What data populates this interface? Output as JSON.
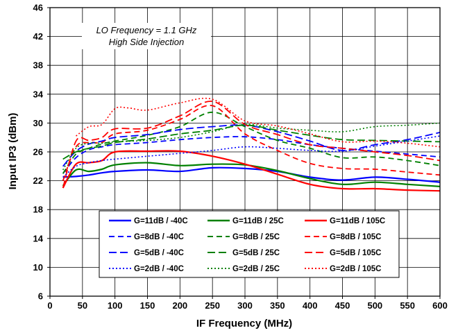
{
  "chart_data": {
    "type": "line",
    "xlabel": "IF Frequency (MHz)",
    "ylabel": "Input IP3 (dBm)",
    "xlim": [
      0,
      600
    ],
    "ylim": [
      6,
      46
    ],
    "xticks": [
      0,
      50,
      100,
      150,
      200,
      250,
      300,
      350,
      400,
      450,
      500,
      550,
      600
    ],
    "yticks": [
      6,
      10,
      14,
      18,
      22,
      26,
      30,
      34,
      38,
      42,
      46
    ],
    "grid": true,
    "annotation": [
      "LO Frequency = 1.1 GHz",
      "High Side Injection"
    ],
    "legend_placement": "bottom-center",
    "series": [
      {
        "name": "G=11dB / -40C",
        "color": "#0000ff",
        "dash": "solid",
        "x": [
          20,
          40,
          60,
          80,
          100,
          150,
          200,
          250,
          300,
          350,
          400,
          450,
          500,
          550,
          600
        ],
        "y": [
          22.5,
          22.6,
          22.8,
          23.1,
          23.3,
          23.5,
          23.3,
          23.8,
          23.7,
          23.3,
          22.5,
          22.1,
          22.5,
          22.2,
          21.8
        ]
      },
      {
        "name": "G=11dB / 25C",
        "color": "#008000",
        "dash": "solid",
        "x": [
          20,
          40,
          60,
          80,
          100,
          150,
          200,
          250,
          300,
          350,
          400,
          450,
          500,
          550,
          600
        ],
        "y": [
          21.3,
          23.5,
          23.3,
          23.6,
          24.2,
          24.5,
          24.1,
          24.3,
          24.2,
          23.4,
          22.3,
          21.5,
          21.8,
          21.5,
          21.2
        ]
      },
      {
        "name": "G=11dB / 105C",
        "color": "#ff0000",
        "dash": "solid",
        "x": [
          20,
          40,
          60,
          80,
          100,
          150,
          200,
          250,
          300,
          350,
          400,
          450,
          500,
          550,
          600
        ],
        "y": [
          21.0,
          24.3,
          24.5,
          24.8,
          26.0,
          26.1,
          26.1,
          25.4,
          24.3,
          22.9,
          21.5,
          20.9,
          20.9,
          20.7,
          20.6
        ]
      },
      {
        "name": "G=8dB / -40C",
        "color": "#0000ff",
        "dash": "dash",
        "x": [
          20,
          40,
          60,
          80,
          100,
          150,
          200,
          250,
          300,
          350,
          400,
          450,
          500,
          550,
          600
        ],
        "y": [
          23.0,
          25.2,
          26.3,
          26.7,
          27.0,
          27.3,
          27.7,
          28.0,
          28.1,
          27.7,
          27.0,
          26.5,
          26.1,
          25.7,
          25.3
        ]
      },
      {
        "name": "G=8dB / 25C",
        "color": "#008000",
        "dash": "dash",
        "x": [
          20,
          40,
          60,
          80,
          100,
          150,
          200,
          250,
          300,
          350,
          400,
          450,
          500,
          550,
          600
        ],
        "y": [
          23.0,
          25.7,
          26.5,
          27.1,
          27.5,
          28.3,
          29.5,
          31.5,
          29.5,
          27.6,
          26.5,
          25.2,
          25.3,
          24.8,
          24.1
        ]
      },
      {
        "name": "G=8dB / 105C",
        "color": "#ff0000",
        "dash": "dash",
        "x": [
          20,
          40,
          60,
          80,
          100,
          150,
          200,
          250,
          300,
          350,
          400,
          450,
          500,
          550,
          600
        ],
        "y": [
          22.0,
          26.7,
          27.3,
          27.3,
          28.5,
          29.0,
          30.5,
          32.4,
          28.5,
          26.2,
          24.4,
          23.7,
          23.6,
          23.2,
          22.8
        ]
      },
      {
        "name": "G=5dB / -40C",
        "color": "#0000ff",
        "dash": "dashlong",
        "x": [
          20,
          40,
          60,
          80,
          100,
          150,
          200,
          250,
          300,
          350,
          400,
          450,
          500,
          550,
          600
        ],
        "y": [
          24.0,
          26.1,
          27.1,
          27.5,
          28.0,
          28.4,
          29.1,
          29.5,
          29.7,
          28.8,
          27.5,
          26.2,
          27.0,
          27.7,
          28.7
        ]
      },
      {
        "name": "G=5dB / 25C",
        "color": "#008000",
        "dash": "dashlong",
        "x": [
          20,
          40,
          60,
          80,
          100,
          150,
          200,
          250,
          300,
          350,
          400,
          450,
          500,
          550,
          600
        ],
        "y": [
          25.0,
          26.0,
          26.5,
          26.8,
          27.3,
          27.8,
          28.5,
          29.0,
          29.7,
          29.0,
          28.3,
          27.7,
          27.6,
          27.5,
          27.4
        ]
      },
      {
        "name": "G=5dB / 105C",
        "color": "#ff0000",
        "dash": "dashlong",
        "x": [
          20,
          40,
          60,
          80,
          100,
          150,
          200,
          250,
          300,
          350,
          400,
          450,
          500,
          550,
          600
        ],
        "y": [
          21.0,
          27.5,
          27.6,
          28.0,
          29.2,
          29.3,
          31.0,
          33.0,
          29.8,
          28.4,
          27.0,
          26.5,
          26.0,
          25.5,
          24.8
        ]
      },
      {
        "name": "G=2dB / -40C",
        "color": "#0000ff",
        "dash": "dot",
        "x": [
          20,
          40,
          60,
          80,
          100,
          150,
          200,
          250,
          300,
          350,
          400,
          450,
          500,
          550,
          600
        ],
        "y": [
          22.5,
          24.0,
          24.5,
          24.8,
          25.0,
          25.4,
          25.8,
          26.2,
          26.7,
          26.5,
          26.2,
          26.1,
          26.8,
          27.5,
          28.2
        ]
      },
      {
        "name": "G=2dB / 25C",
        "color": "#008000",
        "dash": "dot",
        "x": [
          20,
          40,
          60,
          80,
          100,
          150,
          200,
          250,
          300,
          350,
          400,
          450,
          500,
          550,
          600
        ],
        "y": [
          23.5,
          26.5,
          27.2,
          27.2,
          27.4,
          27.6,
          28.0,
          28.8,
          29.8,
          29.3,
          29.0,
          28.8,
          29.5,
          29.7,
          30.0
        ]
      },
      {
        "name": "G=2dB / 105C",
        "color": "#ff0000",
        "dash": "dot",
        "x": [
          40,
          60,
          80,
          100,
          120,
          150,
          200,
          250,
          300,
          350,
          400,
          450,
          500,
          550,
          600
        ],
        "y": [
          28.2,
          29.5,
          29.8,
          32.0,
          32.1,
          31.8,
          32.8,
          33.3,
          30.3,
          29.6,
          28.5,
          27.4,
          27.5,
          27.2,
          26.7
        ]
      }
    ]
  }
}
